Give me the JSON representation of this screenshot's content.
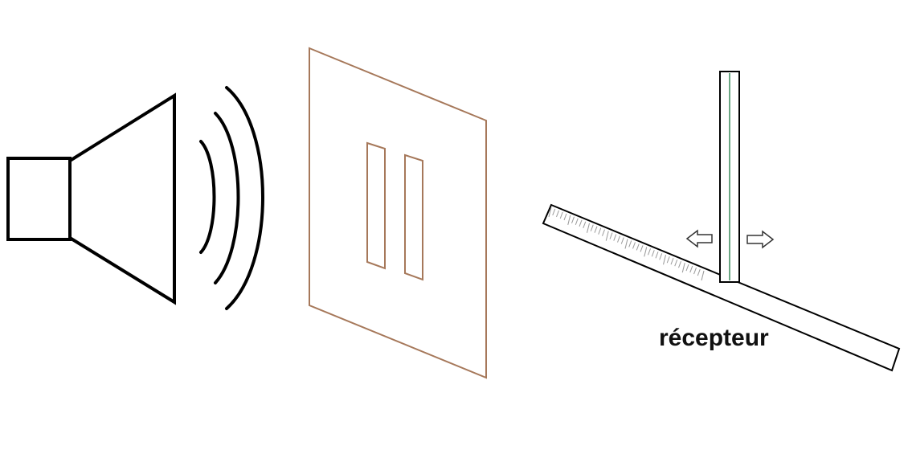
{
  "diagram": {
    "receiver_label": "récepteur",
    "colors": {
      "outline": "#000000",
      "plate": "#a6785a",
      "rod_line": "#3a8a5a",
      "ruler_ticks": "#9a9a9a",
      "arrow_outline": "#333333"
    },
    "components": {
      "speaker": "loudspeaker-icon",
      "waves": "sound-wave-arcs",
      "plate": "double-slit-plate",
      "receiver": "receiver-rod-on-ruler",
      "arrows": [
        "left-arrow-icon",
        "right-arrow-icon"
      ]
    }
  }
}
